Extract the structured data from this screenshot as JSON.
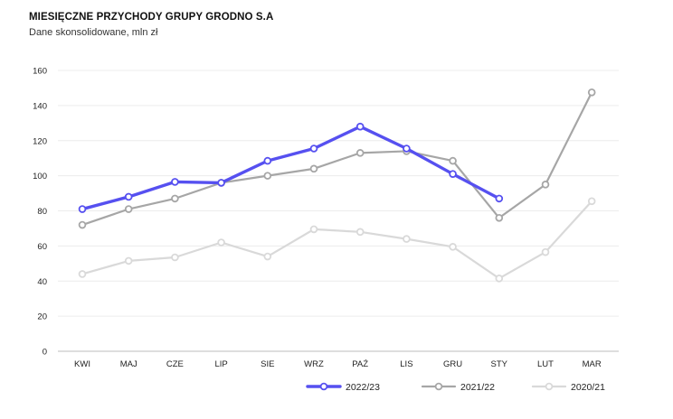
{
  "header": {
    "title": "MIESIĘCZNE PRZYCHODY GRUPY GRODNO S.A",
    "subtitle": "Dane skonsolidowane, mln zł"
  },
  "chart_data": {
    "type": "line",
    "title": "MIESIĘCZNE PRZYCHODY GRUPY GRODNO S.A",
    "subtitle": "Dane skonsolidowane, mln zł",
    "xlabel": "",
    "ylabel": "",
    "categories": [
      "KWI",
      "MAJ",
      "CZE",
      "LIP",
      "SIE",
      "WRZ",
      "PAŹ",
      "LIS",
      "GRU",
      "STY",
      "LUT",
      "MAR"
    ],
    "ylim": [
      0,
      160
    ],
    "yticks": [
      0,
      20,
      40,
      60,
      80,
      100,
      120,
      140,
      160
    ],
    "grid": "horizontal",
    "legend": "bottom-right",
    "series": [
      {
        "name": "2020/21",
        "color": "#d9d9d9",
        "width": 2.2,
        "values": [
          44,
          51.5,
          53.5,
          62,
          54,
          69.5,
          68,
          64,
          59.5,
          41.5,
          56.5,
          85.5
        ]
      },
      {
        "name": "2021/22",
        "color": "#a6a6a6",
        "width": 2.2,
        "values": [
          72,
          81,
          87,
          96,
          100,
          104,
          113,
          114,
          108.5,
          76,
          95,
          147.5
        ]
      },
      {
        "name": "2022/23",
        "color": "#5650f0",
        "width": 3.4,
        "values": [
          81,
          88,
          96.5,
          96,
          108.5,
          115.5,
          128,
          115.5,
          101,
          87,
          null,
          null
        ]
      }
    ],
    "legend_order": [
      "2022/23",
      "2021/22",
      "2020/21"
    ]
  }
}
